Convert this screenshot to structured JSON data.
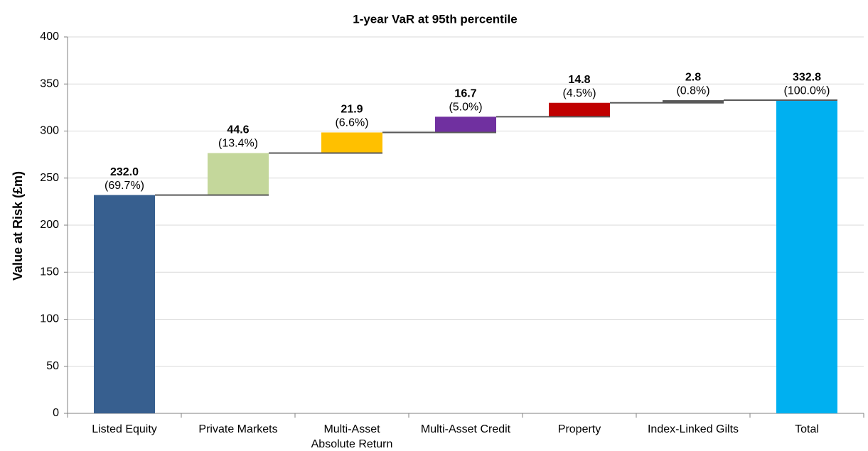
{
  "chart_data": {
    "type": "waterfall",
    "title": "1-year VaR at 95th percentile",
    "y_label": "Value at Risk (£m)",
    "categories": [
      "Listed Equity",
      "Private Markets",
      "Multi-Asset\nAbsolute Return",
      "Multi-Asset Credit",
      "Property",
      "Index-Linked Gilts",
      "Total"
    ],
    "measure": [
      "relative",
      "relative",
      "relative",
      "relative",
      "relative",
      "relative",
      "total"
    ],
    "values": [
      232.0,
      44.6,
      21.9,
      16.7,
      14.8,
      2.8,
      332.8
    ],
    "value_labels": [
      "232.0",
      "44.6",
      "21.9",
      "16.7",
      "14.8",
      "2.8",
      "332.8"
    ],
    "share_labels": [
      "(69.7%)",
      "(13.4%)",
      "(6.6%)",
      "(5.0%)",
      "(4.5%)",
      "(0.8%)",
      "(100.0%)"
    ],
    "colors": [
      "#375f8f",
      "#c4d79b",
      "#ffc000",
      "#7030a0",
      "#c00000",
      "#595959",
      "#00b0f0"
    ],
    "ylim": [
      0,
      400
    ],
    "yticks": [
      0,
      50,
      100,
      150,
      200,
      250,
      300,
      350,
      400
    ],
    "grid": true
  }
}
